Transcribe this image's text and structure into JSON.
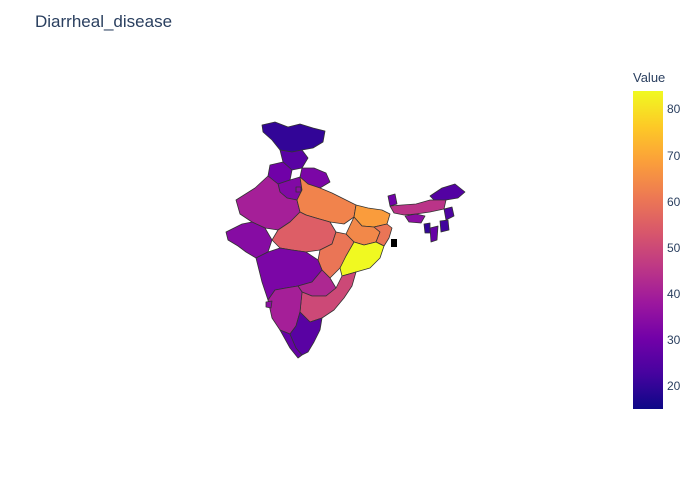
{
  "title": "Diarrheal_disease",
  "colorbar": {
    "title": "Value",
    "min": 15,
    "max": 84,
    "ticks": [
      "20",
      "30",
      "40",
      "50",
      "60",
      "70",
      "80"
    ]
  },
  "colorscale": [
    "#0d0887",
    "#46039f",
    "#7201a8",
    "#9c179e",
    "#bd3786",
    "#d8576b",
    "#ed7953",
    "#fb9f3a",
    "#fdca26",
    "#f0f921"
  ],
  "chart_data": {
    "type": "choropleth",
    "title": "Diarrheal_disease",
    "legend_title": "Value",
    "range": [
      15,
      84
    ],
    "regions": [
      {
        "name": "Jammu & Kashmir",
        "value": 20
      },
      {
        "name": "Himachal Pradesh",
        "value": 26
      },
      {
        "name": "Punjab",
        "value": 30
      },
      {
        "name": "Uttarakhand",
        "value": 32
      },
      {
        "name": "Haryana",
        "value": 33
      },
      {
        "name": "Delhi",
        "value": 35
      },
      {
        "name": "Rajasthan",
        "value": 40
      },
      {
        "name": "Uttar Pradesh",
        "value": 63
      },
      {
        "name": "Bihar",
        "value": 68
      },
      {
        "name": "Gujarat",
        "value": 34
      },
      {
        "name": "Madhya Pradesh",
        "value": 55
      },
      {
        "name": "Jharkhand",
        "value": 64
      },
      {
        "name": "West Bengal",
        "value": 60
      },
      {
        "name": "Sikkim",
        "value": 30
      },
      {
        "name": "Arunachal Pradesh",
        "value": 25
      },
      {
        "name": "Assam",
        "value": 45
      },
      {
        "name": "Meghalaya",
        "value": 35
      },
      {
        "name": "Nagaland",
        "value": 24
      },
      {
        "name": "Manipur",
        "value": 22
      },
      {
        "name": "Mizoram",
        "value": 28
      },
      {
        "name": "Tripura",
        "value": 20
      },
      {
        "name": "Chhattisgarh",
        "value": 60
      },
      {
        "name": "Odisha",
        "value": 84
      },
      {
        "name": "Maharashtra",
        "value": 32
      },
      {
        "name": "Telangana",
        "value": 42
      },
      {
        "name": "Andhra Pradesh",
        "value": 50
      },
      {
        "name": "Karnataka",
        "value": 40
      },
      {
        "name": "Goa",
        "value": 35
      },
      {
        "name": "Kerala",
        "value": 28
      },
      {
        "name": "Tamil Nadu",
        "value": 26
      }
    ]
  }
}
